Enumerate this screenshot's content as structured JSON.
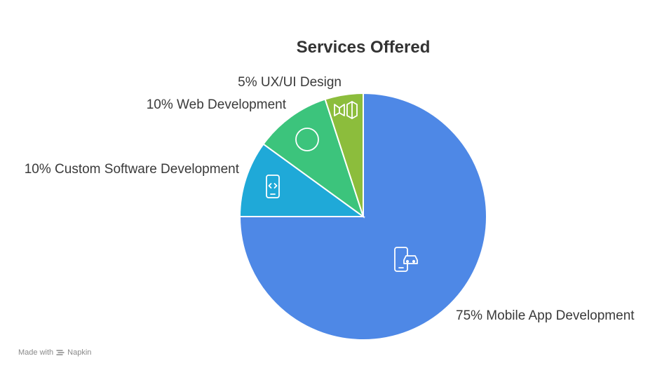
{
  "chart_data": {
    "type": "pie",
    "title": "Services Offered",
    "slices": [
      {
        "label": "75% Mobile App Development",
        "value": 75,
        "color": "#4e88e6",
        "icon": "mobile-car-icon"
      },
      {
        "label": "10% Custom Software Development",
        "value": 10,
        "color": "#1fa9d8",
        "icon": "mobile-code-icon"
      },
      {
        "label": "10% Web Development",
        "value": 10,
        "color": "#3cc47c",
        "icon": "circle-icon"
      },
      {
        "label": "5% UX/UI Design",
        "value": 5,
        "color": "#8cbd3c",
        "icon": "material-design-icon"
      }
    ]
  },
  "footer": {
    "made_with": "Made with",
    "brand": "Napkin"
  }
}
